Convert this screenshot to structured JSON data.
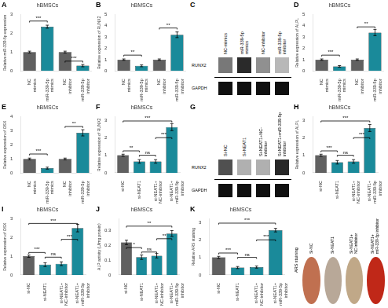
{
  "chart_data": [
    {
      "type": "bar",
      "panel_label": "A",
      "title": "hBMSCs",
      "ylabel": "Relative miR-339-5p expression",
      "categories": [
        "NC\nmimics",
        "miR-339-5p\nmimics",
        "NC\ninhibitor",
        "miR-339-5p\ninhibitor"
      ],
      "values": [
        1.0,
        2.35,
        1.0,
        0.28
      ],
      "errors": [
        0.05,
        0.08,
        0.05,
        0.06
      ],
      "colors": [
        "#606060",
        "#1a8a9a",
        "#606060",
        "#1a8a9a"
      ],
      "ylim": [
        0,
        3.0
      ],
      "yticks": [
        0,
        1,
        2,
        3
      ],
      "grid": false,
      "annotations": [
        {
          "text": "***",
          "from": "NC\nmimics",
          "to": "miR-339-5p\nmimics",
          "y": 2.65
        },
        {
          "text": "***",
          "from": "NC\ninhibitor",
          "to": "miR-339-5p\ninhibitor",
          "y": 0.52
        }
      ]
    },
    {
      "type": "bar",
      "panel_label": "B",
      "title": "hBMSCs",
      "ylabel": "Relative expression of RUNX2",
      "categories": [
        "NC\nmimics",
        "miR-339-5p\nmimics",
        "NC\ninhibitor",
        "miR-339-5p\ninhibitor"
      ],
      "values": [
        1.0,
        0.45,
        1.0,
        3.2
      ],
      "errors": [
        0.06,
        0.08,
        0.06,
        0.25
      ],
      "colors": [
        "#606060",
        "#1a8a9a",
        "#606060",
        "#1a8a9a"
      ],
      "ylim": [
        0,
        5.0
      ],
      "yticks": [
        0,
        1,
        2,
        3,
        4,
        5
      ],
      "grid": false,
      "annotations": [
        {
          "text": "**",
          "from": "NC\nmimics",
          "to": "miR-339-5p\nmimics",
          "y": 1.4
        },
        {
          "text": "**",
          "from": "NC\ninhibitor",
          "to": "miR-339-5p\ninhibitor",
          "y": 3.8
        }
      ]
    },
    {
      "type": "western_blot",
      "panel_label": "C",
      "categories": [
        "NC-mimics",
        "miR-339-5p\nmimics",
        "NC-inhibitor",
        "miR-339-5p\ninhibitor"
      ],
      "series": [
        {
          "name": "RUNX2",
          "colors": [
            "#787878",
            "#2a2a2a",
            "#909090",
            "#b8b8b8"
          ]
        },
        {
          "name": "GAPDH",
          "colors": [
            "#101010",
            "#101010",
            "#101010",
            "#101010"
          ]
        }
      ]
    },
    {
      "type": "bar",
      "panel_label": "D",
      "title": "hBMSCs",
      "ylabel": "Relative expression of ALPL",
      "categories": [
        "NC\nmimics",
        "miR-339-5p\nmimics",
        "NC\ninhibitor",
        "miR-339-5p\ninhibitor"
      ],
      "values": [
        1.0,
        0.4,
        1.0,
        3.4
      ],
      "errors": [
        0.06,
        0.07,
        0.06,
        0.28
      ],
      "colors": [
        "#606060",
        "#1a8a9a",
        "#606060",
        "#1a8a9a"
      ],
      "ylim": [
        0,
        5.0
      ],
      "yticks": [
        0,
        1,
        2,
        3,
        4,
        5
      ],
      "grid": false,
      "annotations": [
        {
          "text": "***",
          "from": "NC\nmimics",
          "to": "miR-339-5p\nmimics",
          "y": 1.4
        },
        {
          "text": "**",
          "from": "NC\ninhibitor",
          "to": "miR-339-5p\ninhibitor",
          "y": 3.9
        }
      ]
    },
    {
      "type": "bar",
      "panel_label": "E",
      "title": "hBMSCs",
      "ylabel": "Relative expression of OSX",
      "categories": [
        "NC\nmimics",
        "miR-339-5p\nmimics",
        "NC\ninhibitor",
        "miR-339-5p\ninhibitor"
      ],
      "values": [
        1.0,
        0.35,
        1.0,
        2.85
      ],
      "errors": [
        0.06,
        0.07,
        0.06,
        0.22
      ],
      "colors": [
        "#606060",
        "#1a8a9a",
        "#606060",
        "#1a8a9a"
      ],
      "ylim": [
        0,
        4.0
      ],
      "yticks": [
        0,
        1,
        2,
        3,
        4
      ],
      "grid": false,
      "annotations": [
        {
          "text": "***",
          "from": "NC\nmimics",
          "to": "miR-339-5p\nmimics",
          "y": 1.35
        },
        {
          "text": "**",
          "from": "NC\ninhibitor",
          "to": "miR-339-5p\ninhibitor",
          "y": 3.3
        }
      ]
    },
    {
      "type": "bar",
      "panel_label": "F",
      "title": "hBMSCs",
      "ylabel": "Relative expression of RUNX2",
      "categories": [
        "si-NC",
        "si-NEAT1",
        "si-NEAT1+\nNC-inhibitor",
        "si-NEAT1+\nmiR-339-5p\ninhibitor"
      ],
      "values": [
        1.0,
        0.65,
        0.65,
        2.6
      ],
      "errors": [
        0.06,
        0.1,
        0.1,
        0.2
      ],
      "colors": [
        "#606060",
        "#1a8a9a",
        "#1a8a9a",
        "#1a8a9a"
      ],
      "ylim": [
        0,
        3.2
      ],
      "yticks": [
        0,
        1,
        2,
        3
      ],
      "grid": false,
      "annotations": [
        {
          "text": "**",
          "from": "si-NC",
          "to": "si-NEAT1",
          "y": 1.25
        },
        {
          "text": "ns",
          "from": "si-NEAT1",
          "to": "si-NEAT1+\nNC-inhibitor",
          "y": 1.0
        },
        {
          "text": "***",
          "from": "si-NC",
          "to": "si-NEAT1+\nmiR-339-5p\ninhibitor",
          "y": 2.95
        },
        {
          "text": "***",
          "from": "si-NEAT1+\nNC-inhibitor",
          "to": "si-NEAT1+\nmiR-339-5p\ninhibitor",
          "y": 2.0
        }
      ]
    },
    {
      "type": "western_blot",
      "panel_label": "G",
      "categories": [
        "Si-NC",
        "Si-NEAT1",
        "Si-NEAT1+NC-\ninhibitor",
        "Si-NEAT1+miR-339-5p\ninhibitor"
      ],
      "series": [
        {
          "name": "RUNX2",
          "colors": [
            "#505050",
            "#b0b0b0",
            "#b0b0b0",
            "#282828"
          ]
        },
        {
          "name": "GAPDH",
          "colors": [
            "#101010",
            "#101010",
            "#101010",
            "#101010"
          ]
        }
      ]
    },
    {
      "type": "bar",
      "panel_label": "H",
      "title": "hBMSCs",
      "ylabel": "Relative expression of ALPL",
      "categories": [
        "si-NC",
        "si-NEAT1",
        "si-NEAT1+\nNC-inhibitor",
        "si-NEAT1+\nmiR-339-5p\ninhibitor"
      ],
      "values": [
        1.0,
        0.6,
        0.65,
        2.55
      ],
      "errors": [
        0.06,
        0.1,
        0.1,
        0.2
      ],
      "colors": [
        "#606060",
        "#1a8a9a",
        "#1a8a9a",
        "#1a8a9a"
      ],
      "ylim": [
        0,
        3.2
      ],
      "yticks": [
        0,
        1,
        2,
        3
      ],
      "grid": false,
      "annotations": [
        {
          "text": "***",
          "from": "si-NC",
          "to": "si-NEAT1",
          "y": 1.25
        },
        {
          "text": "ns",
          "from": "si-NEAT1",
          "to": "si-NEAT1+\nNC-inhibitor",
          "y": 1.0
        },
        {
          "text": "***",
          "from": "si-NC",
          "to": "si-NEAT1+\nmiR-339-5p\ninhibitor",
          "y": 2.95
        },
        {
          "text": "***",
          "from": "si-NEAT1+\nNC-inhibitor",
          "to": "si-NEAT1+\nmiR-339-5p\ninhibitor",
          "y": 2.0
        }
      ]
    },
    {
      "type": "bar",
      "panel_label": "I",
      "title": "hBMSCs",
      "ylabel": "Relative expression of OSX",
      "categories": [
        "si-NC",
        "si-NEAT1",
        "si-NEAT1+\nNC-inhibitor",
        "si-NEAT1+\nmiR-339-5p\ninhibitor"
      ],
      "values": [
        1.0,
        0.55,
        0.6,
        2.5
      ],
      "errors": [
        0.06,
        0.1,
        0.1,
        0.2
      ],
      "colors": [
        "#606060",
        "#1a8a9a",
        "#1a8a9a",
        "#1a8a9a"
      ],
      "ylim": [
        0,
        3.0
      ],
      "yticks": [
        0,
        1,
        2,
        3
      ],
      "grid": false,
      "annotations": [
        {
          "text": "***",
          "from": "si-NC",
          "to": "si-NEAT1",
          "y": 1.2
        },
        {
          "text": "ns",
          "from": "si-NEAT1",
          "to": "si-NEAT1+\nNC-inhibitor",
          "y": 0.95
        },
        {
          "text": "***",
          "from": "si-NC",
          "to": "si-NEAT1+\nmiR-339-5p\ninhibitor",
          "y": 2.75
        },
        {
          "text": "***",
          "from": "si-NEAT1+\nNC-inhibitor",
          "to": "si-NEAT1+\nmiR-339-5p\ninhibitor",
          "y": 1.9
        }
      ]
    },
    {
      "type": "bar",
      "panel_label": "J",
      "title": "hBMSCs",
      "ylabel": "ALP activity (U/mg protein)",
      "categories": [
        "si-NC",
        "si-NEAT1",
        "si-NEAT1+\nNC-inhibitor",
        "si-NEAT1+\nmiR-339-5p\ninhibitor"
      ],
      "values": [
        0.22,
        0.12,
        0.13,
        0.28
      ],
      "errors": [
        0.015,
        0.015,
        0.015,
        0.02
      ],
      "colors": [
        "#606060",
        "#1a8a9a",
        "#1a8a9a",
        "#1a8a9a"
      ],
      "ylim": [
        0,
        0.38
      ],
      "yticks": [
        0,
        0.1,
        0.2,
        0.3
      ],
      "grid": false,
      "annotations": [
        {
          "text": "*",
          "from": "si-NC",
          "to": "si-NEAT1",
          "y": 0.185
        },
        {
          "text": "ns",
          "from": "si-NEAT1",
          "to": "si-NEAT1+\nNC-inhibitor",
          "y": 0.155
        },
        {
          "text": "**",
          "from": "si-NC",
          "to": "si-NEAT1+\nmiR-339-5p\ninhibitor",
          "y": 0.33
        },
        {
          "text": "**",
          "from": "si-NEAT1+\nNC-inhibitor",
          "to": "si-NEAT1+\nmiR-339-5p\ninhibitor",
          "y": 0.245
        }
      ]
    },
    {
      "type": "bar",
      "panel_label": "K",
      "title": "hBMSCs",
      "ylabel": "Relative ARS staining",
      "categories": [
        "si-NC",
        "si-NEAT1",
        "si-NEAT1+\nNC-inhibitor",
        "si-NEAT1+\nmiR-339-5p\ninhibitor"
      ],
      "values": [
        1.0,
        0.42,
        0.45,
        2.55
      ],
      "errors": [
        0.06,
        0.06,
        0.06,
        0.1
      ],
      "colors": [
        "#606060",
        "#1a8a9a",
        "#1a8a9a",
        "#1a8a9a"
      ],
      "ylim": [
        0,
        3.2
      ],
      "yticks": [
        0,
        1,
        2,
        3
      ],
      "grid": false,
      "annotations": [
        {
          "text": "***",
          "from": "si-NC",
          "to": "si-NEAT1",
          "y": 1.25
        },
        {
          "text": "ns",
          "from": "si-NEAT1",
          "to": "si-NEAT1+\nNC-inhibitor",
          "y": 1.0
        },
        {
          "text": "***",
          "from": "si-NC",
          "to": "si-NEAT1+\nmiR-339-5p\ninhibitor",
          "y": 2.95
        },
        {
          "text": "***",
          "from": "si-NEAT1+\nNC-inhibitor",
          "to": "si-NEAT1+\nmiR-339-5p\ninhibitor",
          "y": 2.0
        }
      ]
    },
    {
      "type": "staining",
      "title": "ARS staining",
      "categories": [
        "Si-NC",
        "Si-NEAT1",
        "Si-NEAT1+\nNC inhibitor",
        "Si-NEAT1+\nmiR-339-5p inhibitor"
      ],
      "colors": [
        "#c07050",
        "#b8a898",
        "#c0a888",
        "#c02818"
      ]
    }
  ]
}
